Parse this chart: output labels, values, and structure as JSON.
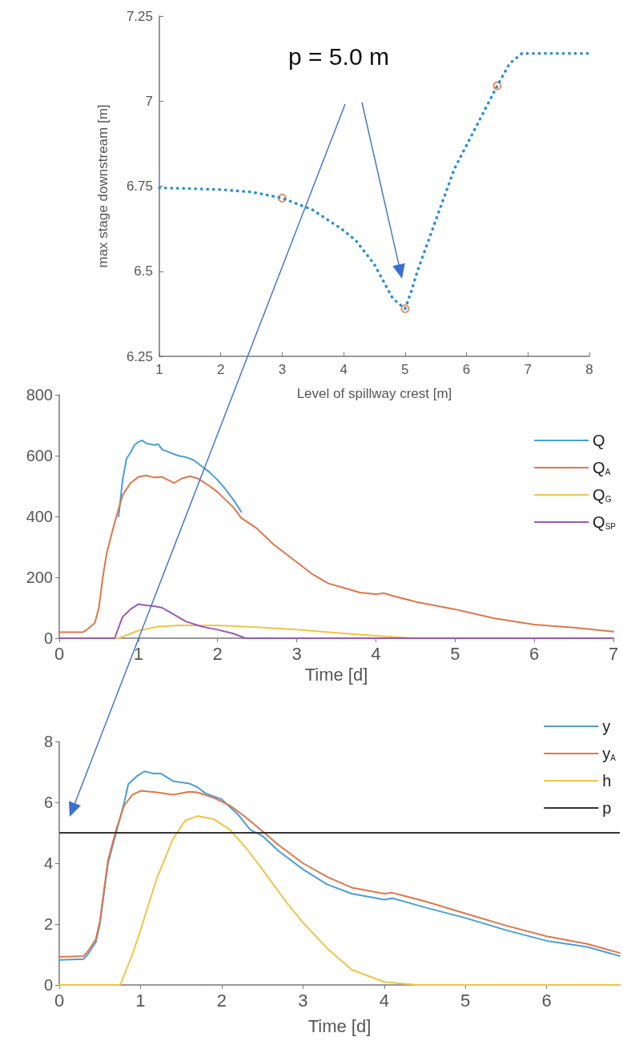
{
  "chart_data": [
    {
      "type": "line",
      "xlabel": "Level of spillway crest [m]",
      "ylabel": "max stage downstream [m]",
      "xlim": [
        1,
        8
      ],
      "ylim": [
        6.25,
        7.25
      ],
      "xticks": [
        1,
        2,
        3,
        4,
        5,
        6,
        7,
        8
      ],
      "yticks": [
        6.25,
        6.5,
        6.75,
        7,
        7.25
      ],
      "legend": false,
      "annotations": [
        "p = 5.0 m"
      ],
      "series": [
        {
          "type": "line",
          "color": "#2a8fd8",
          "line_style": "dotted",
          "marker": "none",
          "x": [
            1,
            1.5,
            2,
            2.5,
            3,
            3.5,
            4,
            4.2,
            4.5,
            4.8,
            5,
            5.1,
            5.2,
            5.4,
            5.6,
            5.8,
            6,
            6.2,
            6.4,
            6.5,
            6.7,
            6.9,
            7,
            8
          ],
          "values": [
            6.745,
            6.743,
            6.74,
            6.733,
            6.715,
            6.68,
            6.62,
            6.59,
            6.52,
            6.42,
            6.39,
            6.44,
            6.5,
            6.6,
            6.7,
            6.8,
            6.87,
            6.94,
            7.01,
            7.045,
            7.11,
            7.14,
            7.14,
            7.14
          ]
        },
        {
          "type": "scatter",
          "color": "#e8703a",
          "marker": "circle",
          "x": [
            3,
            5,
            6.5
          ],
          "values": [
            6.715,
            6.39,
            7.045
          ]
        }
      ]
    },
    {
      "type": "line",
      "xlabel": "Time [d]",
      "xlim": [
        0,
        7
      ],
      "ylim": [
        0,
        800
      ],
      "xticks": [
        0,
        1,
        2,
        3,
        4,
        5,
        6,
        7
      ],
      "yticks": [
        0,
        200,
        400,
        600,
        800
      ],
      "legend": "top right",
      "series": [
        {
          "name": "Q",
          "color": "#4a9fd4",
          "x": [
            0.75,
            0.8,
            0.85,
            0.9,
            0.95,
            1.0,
            1.05,
            1.1,
            1.2,
            1.25,
            1.3,
            1.5,
            1.6,
            1.7,
            1.8,
            1.9,
            2.0,
            2.1,
            2.2,
            2.3
          ],
          "values": [
            400,
            520,
            590,
            610,
            635,
            645,
            650,
            640,
            635,
            638,
            620,
            600,
            595,
            585,
            565,
            545,
            520,
            490,
            455,
            415
          ]
        },
        {
          "name": "Q$_{A}$",
          "color": "#e0764a",
          "x": [
            0,
            0.3,
            0.35,
            0.45,
            0.5,
            0.55,
            0.6,
            0.7,
            0.8,
            0.9,
            1.0,
            1.1,
            1.2,
            1.3,
            1.45,
            1.55,
            1.65,
            1.75,
            1.9,
            2.0,
            2.2,
            2.3,
            2.5,
            2.7,
            3.0,
            3.2,
            3.4,
            3.6,
            3.8,
            4.0,
            4.1,
            4.2,
            4.5,
            5.0,
            5.5,
            6.0,
            6.5,
            7.0
          ],
          "values": [
            20,
            20,
            28,
            50,
            100,
            200,
            280,
            380,
            470,
            510,
            530,
            535,
            528,
            530,
            510,
            525,
            532,
            525,
            500,
            480,
            430,
            395,
            360,
            310,
            250,
            210,
            180,
            165,
            150,
            145,
            148,
            140,
            120,
            95,
            65,
            45,
            35,
            22
          ]
        },
        {
          "name": "Q$_{G}$",
          "color": "#f0c449",
          "x": [
            0,
            0.75,
            1.0,
            1.25,
            1.5,
            2.0,
            2.5,
            3.0,
            3.5,
            4.0,
            4.5,
            7.0
          ],
          "values": [
            0,
            0,
            25,
            38,
            42,
            42,
            36,
            28,
            18,
            8,
            0,
            0
          ]
        },
        {
          "name": "Q$_{SP}$",
          "color": "#9b59b6",
          "x": [
            0,
            0.7,
            0.8,
            0.9,
            1.0,
            1.1,
            1.2,
            1.3,
            1.4,
            1.6,
            1.8,
            2.0,
            2.2,
            2.35,
            7.0
          ],
          "values": [
            0,
            0,
            70,
            95,
            112,
            108,
            105,
            100,
            85,
            55,
            38,
            28,
            15,
            0,
            0
          ]
        }
      ]
    },
    {
      "type": "line",
      "xlabel": "Time [d]",
      "xlim": [
        0,
        6.9
      ],
      "ylim": [
        0,
        8
      ],
      "xticks": [
        0,
        1,
        2,
        3,
        4,
        5,
        6
      ],
      "yticks": [
        0,
        2,
        4,
        6,
        8
      ],
      "legend": "top right",
      "ref_lines": [
        {
          "axis": "y",
          "value": 5,
          "label": "p",
          "color": "#333333"
        }
      ],
      "series": [
        {
          "name": "y",
          "color": "#4a9fd4",
          "x": [
            0,
            0.3,
            0.35,
            0.45,
            0.5,
            0.55,
            0.6,
            0.7,
            0.8,
            0.85,
            0.95,
            1.05,
            1.15,
            1.25,
            1.4,
            1.6,
            1.7,
            1.8,
            2.0,
            2.2,
            2.35,
            2.5,
            2.7,
            3.0,
            3.3,
            3.6,
            4.0,
            4.1,
            4.5,
            5.0,
            5.5,
            6.0,
            6.5,
            6.9
          ],
          "values": [
            0.82,
            0.85,
            1.0,
            1.4,
            2.0,
            3.0,
            4.0,
            5.0,
            6.0,
            6.6,
            6.85,
            7.02,
            6.95,
            6.95,
            6.7,
            6.62,
            6.5,
            6.3,
            6.1,
            5.6,
            5.1,
            4.9,
            4.4,
            3.8,
            3.3,
            3.0,
            2.8,
            2.85,
            2.55,
            2.2,
            1.8,
            1.45,
            1.25,
            0.95
          ]
        },
        {
          "name": "y$_{A}$",
          "color": "#e0764a",
          "x": [
            0,
            0.3,
            0.35,
            0.45,
            0.5,
            0.55,
            0.6,
            0.7,
            0.8,
            0.9,
            1.0,
            1.2,
            1.4,
            1.6,
            1.7,
            1.9,
            2.1,
            2.3,
            2.5,
            2.7,
            3.0,
            3.3,
            3.6,
            4.0,
            4.1,
            4.5,
            5.0,
            5.5,
            6.0,
            6.5,
            6.9
          ],
          "values": [
            0.92,
            0.95,
            1.1,
            1.5,
            2.1,
            3.1,
            4.1,
            5.1,
            5.9,
            6.25,
            6.38,
            6.33,
            6.25,
            6.35,
            6.33,
            6.15,
            5.9,
            5.5,
            5.05,
            4.6,
            4.0,
            3.55,
            3.2,
            3.0,
            3.03,
            2.75,
            2.35,
            1.95,
            1.6,
            1.35,
            1.05
          ]
        },
        {
          "name": "h",
          "color": "#f0c449",
          "x": [
            0,
            0.75,
            0.9,
            1.0,
            1.2,
            1.4,
            1.55,
            1.7,
            1.9,
            2.1,
            2.3,
            2.5,
            2.8,
            3.0,
            3.3,
            3.6,
            4.0,
            4.4,
            6.9
          ],
          "values": [
            0,
            0,
            1.0,
            1.8,
            3.5,
            4.8,
            5.4,
            5.55,
            5.45,
            5.1,
            4.5,
            3.8,
            2.7,
            2.05,
            1.2,
            0.5,
            0.1,
            0,
            0
          ]
        }
      ]
    }
  ]
}
